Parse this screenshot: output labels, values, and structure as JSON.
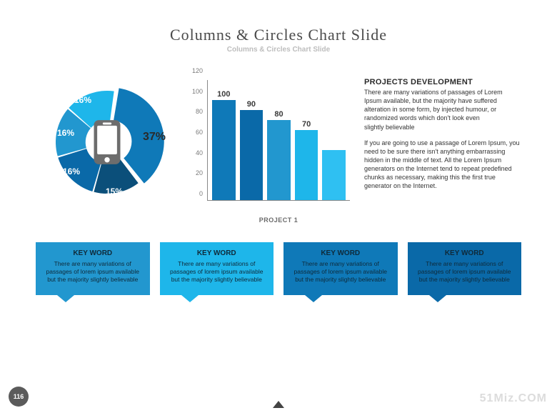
{
  "title": "Columns & Circles Chart Slide",
  "subtitle": "Columns & Circles Chart Slide",
  "donut": {
    "slices": [
      {
        "label": "37%",
        "value": 37,
        "color": "#0f79b8"
      },
      {
        "label": "15%",
        "value": 15,
        "color": "#0b4f7a"
      },
      {
        "label": "16%",
        "value": 16,
        "color": "#0a69a8"
      },
      {
        "label": "16%",
        "value": 16,
        "color": "#2297cf"
      },
      {
        "label": "16%",
        "value": 16,
        "color": "#1eb6ea"
      }
    ],
    "inner_radius": 0.42,
    "outer_radius": 1.0,
    "big_slice_explode": 0.06,
    "center_icon": "phone-icon",
    "center_bg": "#ffffff",
    "icon_color": "#6d6d6d"
  },
  "barchart": {
    "type": "bar",
    "ylim": [
      0,
      120
    ],
    "ytick_step": 20,
    "yticks": [
      0,
      20,
      40,
      60,
      80,
      100,
      120
    ],
    "values": [
      100,
      90,
      80,
      70,
      50
    ],
    "value_labels": [
      "100",
      "90",
      "80",
      "70",
      ""
    ],
    "colors": [
      "#0f79b8",
      "#0a69a8",
      "#2297cf",
      "#1eb6ea",
      "#2fc0f2"
    ],
    "xlabel": "PROJECT 1",
    "axis_color": "#888888",
    "label_color": "#7a7a7a",
    "value_color": "#3a3a3a",
    "bar_gap": 6
  },
  "textblock": {
    "title": "PROJECTS DEVELOPMENT",
    "p1": "There are many variations of passages of Lorem Ipsum available, but the majority have suffered alteration in some form, by injected humour, or randomized words which don't look even",
    "p1b": "slightly believable",
    "p2": "If you are going to use a passage of Lorem Ipsum, you need to be sure there isn't anything embarrassing hidden in the middle of text. All the Lorem Ipsum generators on the Internet tend to repeat predefined chunks as necessary, making this the first true generator on the Internet."
  },
  "cards": [
    {
      "title": "KEY WORD",
      "body": "There are many variations of passages of lorem ipsum available but the majority slightly believable",
      "bg": "#2297cf"
    },
    {
      "title": "KEY WORD",
      "body": "There are many variations of passages of lorem ipsum available but the majority slightly believable",
      "bg": "#1eb6ea"
    },
    {
      "title": "KEY WORD",
      "body": "There are many variations of passages of lorem ipsum available but the majority slightly believable",
      "bg": "#0f79b8"
    },
    {
      "title": "KEY WORD",
      "body": "There are many variations of passages of lorem ipsum available but the majority slightly believable",
      "bg": "#0a69a8"
    }
  ],
  "page_number": "116",
  "watermark": "51Miz.COM"
}
